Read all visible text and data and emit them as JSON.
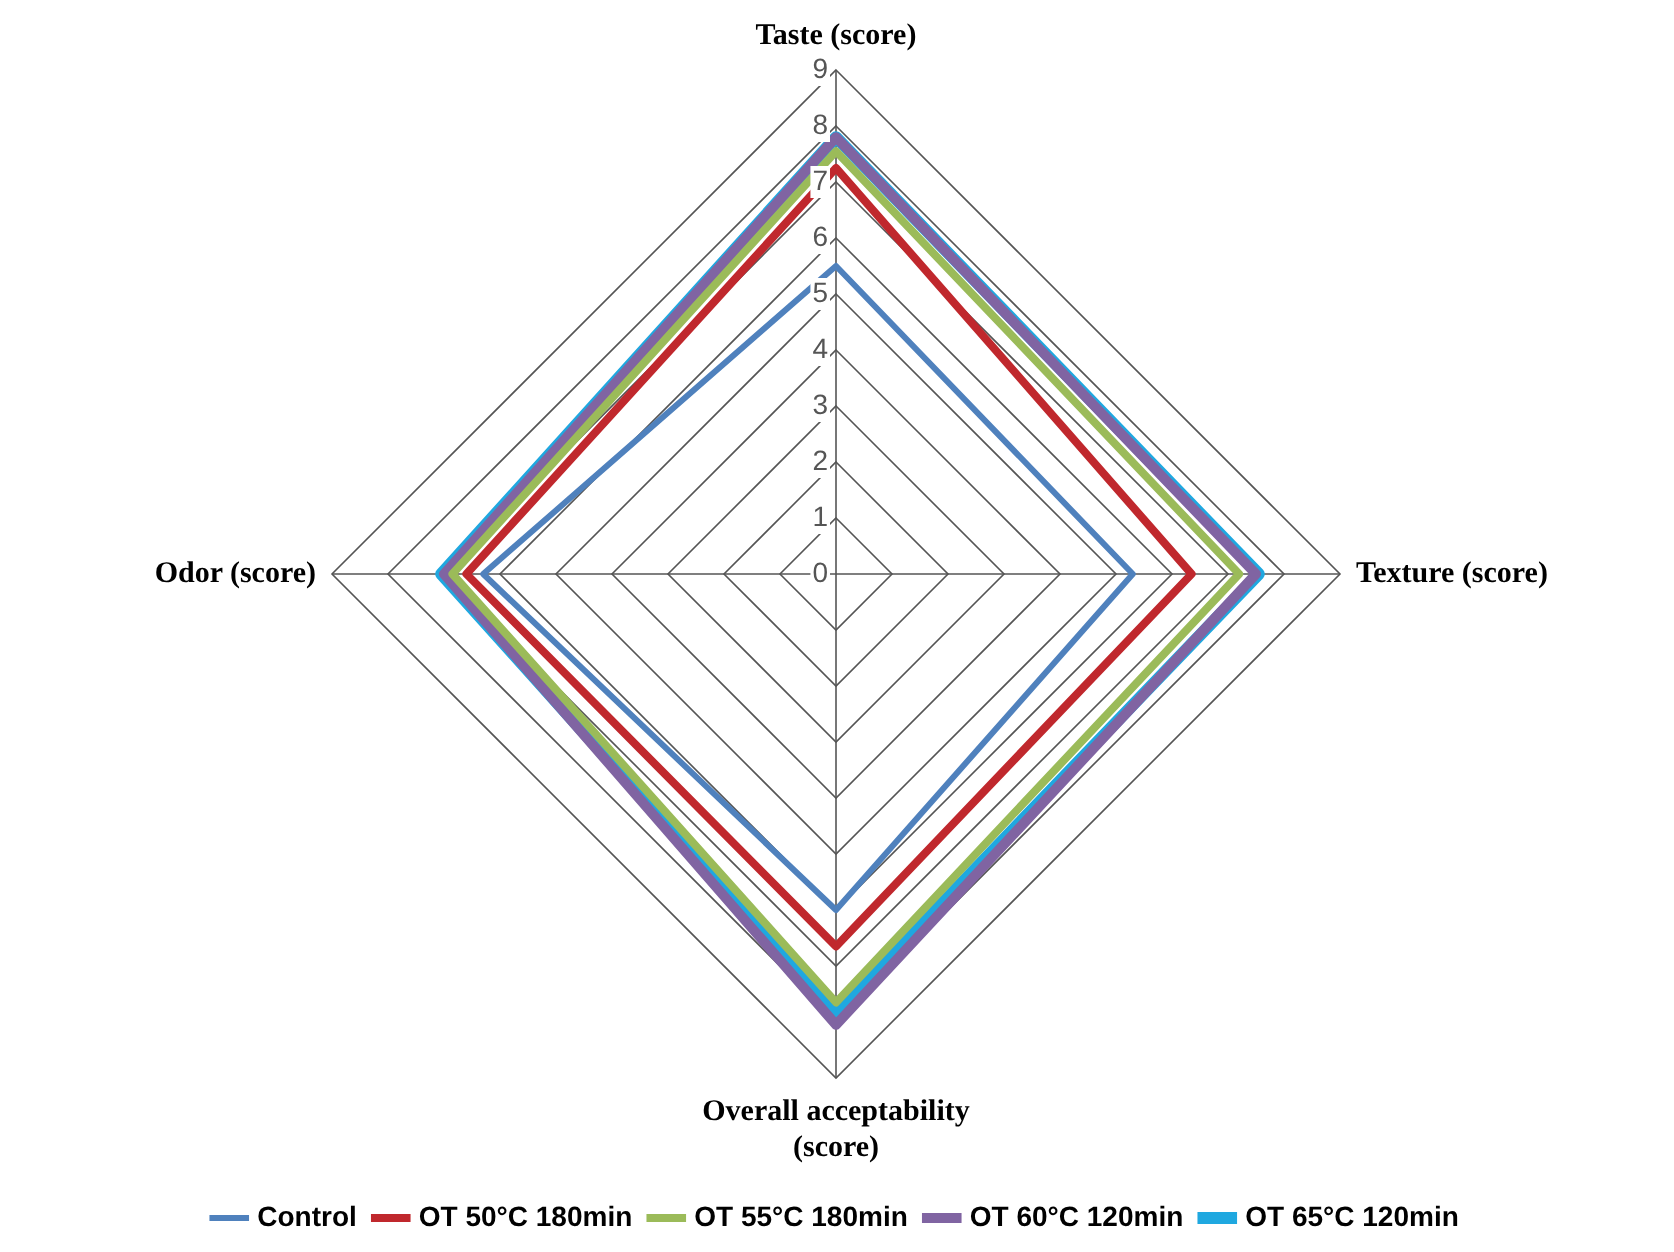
{
  "chart_data": {
    "type": "radar",
    "categories": [
      "Taste (score)",
      "Texture (score)",
      "Overall acceptability (score)",
      "Odor (score)"
    ],
    "series": [
      {
        "name": "Control",
        "color": "#4f81bd",
        "values": [
          5.5,
          5.3,
          6.0,
          6.3
        ]
      },
      {
        "name": "OT 50°C 180min",
        "color": "#c0282d",
        "values": [
          7.25,
          6.35,
          6.65,
          6.6
        ]
      },
      {
        "name": "OT 55°C 180min",
        "color": "#9bbb59",
        "values": [
          7.55,
          7.2,
          7.65,
          6.85
        ]
      },
      {
        "name": "OT 60°C 120min",
        "color": "#8064a2",
        "values": [
          7.8,
          7.5,
          8.05,
          7.0
        ]
      },
      {
        "name": "OT 65°C 120min",
        "color": "#1fa8e0",
        "values": [
          7.8,
          7.55,
          7.85,
          7.05
        ]
      }
    ],
    "ylim": [
      0,
      9
    ],
    "yticks": [
      0,
      1,
      2,
      3,
      4,
      5,
      6,
      7,
      8,
      9
    ],
    "grid": true,
    "legend": "bottom",
    "marker": "none",
    "line_style": "solid"
  }
}
